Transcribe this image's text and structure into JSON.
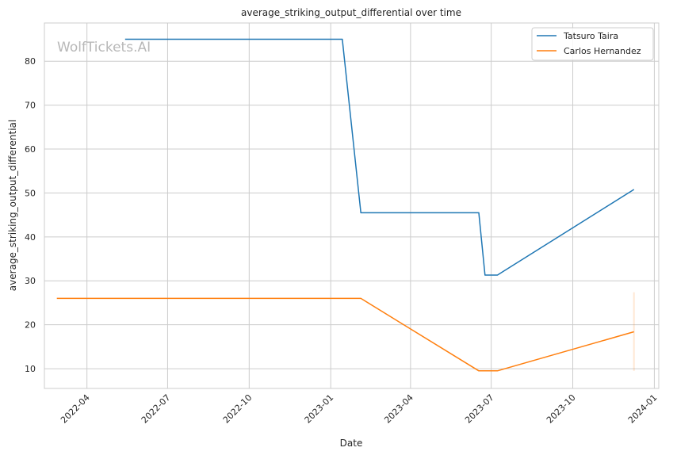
{
  "chart_data": {
    "type": "line",
    "title": "average_striking_output_differential over time",
    "xlabel": "Date",
    "ylabel": "average_striking_output_differential",
    "x_type": "date",
    "xlim": [
      "2022-02-12",
      "2024-01-06"
    ],
    "ylim": [
      5.5,
      88.7
    ],
    "x_ticks": [
      "2022-04-01",
      "2022-07-01",
      "2022-10-01",
      "2023-01-01",
      "2023-04-01",
      "2023-07-01",
      "2023-10-01",
      "2024-01-01"
    ],
    "x_tick_labels": [
      "2022-04",
      "2022-07",
      "2022-10",
      "2023-01",
      "2023-04",
      "2023-07",
      "2023-10",
      "2024-01"
    ],
    "y_ticks": [
      10,
      20,
      30,
      40,
      50,
      60,
      70,
      80
    ],
    "grid": true,
    "legend_position": "top-right",
    "watermark": "WolfTickets.AI",
    "series": [
      {
        "name": "Tatsuro Taira",
        "color": "#1f77b4",
        "points": [
          {
            "x": "2022-05-14",
            "y": 85
          },
          {
            "x": "2023-01-14",
            "y": 85
          },
          {
            "x": "2023-02-04",
            "y": 45.5
          },
          {
            "x": "2023-06-17",
            "y": 45.5
          },
          {
            "x": "2023-06-24",
            "y": 31.3
          },
          {
            "x": "2023-07-08",
            "y": 31.3
          },
          {
            "x": "2023-12-09",
            "y": 50.8
          }
        ]
      },
      {
        "name": "Carlos Hernandez",
        "color": "#ff7f0e",
        "points": [
          {
            "x": "2022-02-26",
            "y": 26
          },
          {
            "x": "2023-02-04",
            "y": 26
          },
          {
            "x": "2023-06-17",
            "y": 9.5
          },
          {
            "x": "2023-07-08",
            "y": 9.5
          },
          {
            "x": "2023-12-09",
            "y": 18.4
          }
        ],
        "band": {
          "x": "2023-12-09",
          "low": 9.5,
          "high": 27.4
        }
      }
    ]
  }
}
